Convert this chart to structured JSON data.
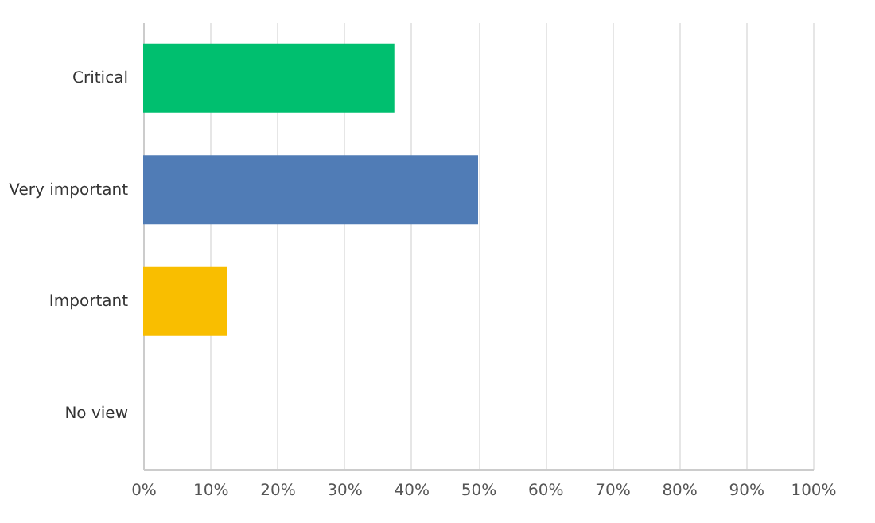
{
  "chart_data": {
    "type": "bar",
    "orientation": "horizontal",
    "categories": [
      "Critical",
      "Very important",
      "Important",
      "No view"
    ],
    "values": [
      37.5,
      50,
      12.5,
      0
    ],
    "colors": [
      "#00bf6f",
      "#507cb6",
      "#f9be00",
      "#a0a0a0"
    ],
    "xlim": [
      0,
      100
    ],
    "xticks": [
      {
        "value": 0,
        "label": "0%"
      },
      {
        "value": 10,
        "label": "10%"
      },
      {
        "value": 20,
        "label": "20%"
      },
      {
        "value": 30,
        "label": "30%"
      },
      {
        "value": 40,
        "label": "40%"
      },
      {
        "value": 50,
        "label": "50%"
      },
      {
        "value": 60,
        "label": "60%"
      },
      {
        "value": 70,
        "label": "70%"
      },
      {
        "value": 80,
        "label": "80%"
      },
      {
        "value": 90,
        "label": "90%"
      },
      {
        "value": 100,
        "label": "100%"
      }
    ],
    "grid": "x",
    "legend": false
  }
}
